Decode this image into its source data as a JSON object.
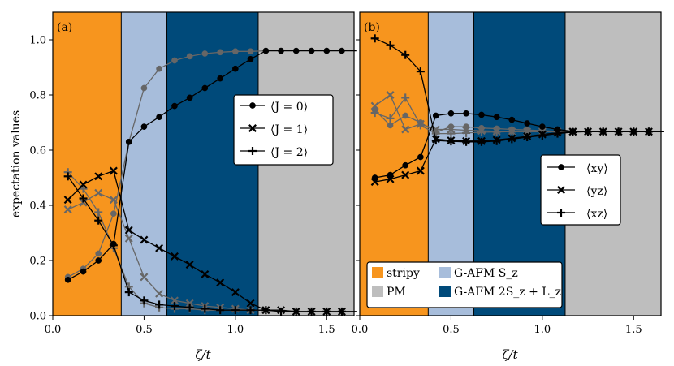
{
  "chart_data": [
    {
      "panel": "(a)",
      "type": "line",
      "xlabel": "ζ/t",
      "ylabel": "expectation values",
      "xlim": [
        0.0,
        1.65
      ],
      "ylim": [
        0.0,
        1.1
      ],
      "xticks": [
        "0.0",
        "0.5",
        "1.0",
        "1.5"
      ],
      "xtick_values": [
        0.0,
        0.5,
        1.0,
        1.5
      ],
      "yticks": [
        "0.0",
        "0.2",
        "0.4",
        "0.6",
        "0.8",
        "1.0"
      ],
      "ytick_values": [
        0.0,
        0.2,
        0.4,
        0.6,
        0.8,
        1.0
      ],
      "regions": [
        {
          "name": "stripy",
          "from": 0.0,
          "to": 0.375,
          "color": "#f7951e"
        },
        {
          "name": "G-AFM Sz",
          "from": 0.375,
          "to": 0.625,
          "color": "#a7bddb"
        },
        {
          "name": "G-AFM 2Sz+Lz",
          "from": 0.625,
          "to": 1.125,
          "color": "#004a7a"
        },
        {
          "name": "PM",
          "from": 1.125,
          "to": 1.65,
          "color": "#bebebe"
        }
      ],
      "legend": [
        "⟨J = 0⟩",
        "⟨J = 1⟩",
        "⟨J = 2⟩"
      ],
      "legend_position": "center-right",
      "series": [
        {
          "name": "⟨J = 0⟩",
          "marker": "circle",
          "color": "#000000",
          "x": [
            0.083,
            0.167,
            0.25,
            0.333,
            0.417,
            0.5,
            0.583,
            0.667,
            0.75,
            0.833,
            0.917,
            1.0,
            1.083,
            1.167,
            1.25,
            1.333,
            1.417,
            1.5,
            1.583,
            1.667
          ],
          "y": [
            0.13,
            0.16,
            0.2,
            0.26,
            0.63,
            0.685,
            0.72,
            0.76,
            0.79,
            0.825,
            0.86,
            0.895,
            0.93,
            0.96,
            0.96,
            0.96,
            0.96,
            0.96,
            0.96,
            0.96
          ]
        },
        {
          "name": "⟨J = 1⟩",
          "marker": "x",
          "color": "#000000",
          "x": [
            0.083,
            0.167,
            0.25,
            0.333,
            0.417,
            0.5,
            0.583,
            0.667,
            0.75,
            0.833,
            0.917,
            1.0,
            1.083,
            1.167,
            1.25,
            1.333,
            1.417,
            1.5,
            1.583,
            1.667
          ],
          "y": [
            0.42,
            0.475,
            0.505,
            0.525,
            0.31,
            0.275,
            0.245,
            0.215,
            0.185,
            0.15,
            0.12,
            0.085,
            0.045,
            0.02,
            0.02,
            0.015,
            0.015,
            0.015,
            0.015,
            0.015
          ]
        },
        {
          "name": "⟨J = 2⟩",
          "marker": "plus",
          "color": "#000000",
          "x": [
            0.083,
            0.167,
            0.25,
            0.333,
            0.417,
            0.5,
            0.583,
            0.667,
            0.75,
            0.833,
            0.917,
            1.0,
            1.083,
            1.167,
            1.25,
            1.333,
            1.417,
            1.5,
            1.583,
            1.667
          ],
          "y": [
            0.505,
            0.425,
            0.345,
            0.255,
            0.085,
            0.055,
            0.04,
            0.035,
            0.03,
            0.025,
            0.02,
            0.02,
            0.02,
            0.02,
            0.015,
            0.015,
            0.015,
            0.015,
            0.015,
            0.015
          ]
        },
        {
          "name": "⟨J = 0⟩ (alt)",
          "marker": "circle",
          "color": "#666666",
          "x": [
            0.083,
            0.167,
            0.25,
            0.333,
            0.417,
            0.5,
            0.583,
            0.667,
            0.75,
            0.833,
            0.917,
            1.0,
            1.083,
            1.167
          ],
          "y": [
            0.14,
            0.17,
            0.225,
            0.37,
            0.63,
            0.825,
            0.895,
            0.925,
            0.94,
            0.95,
            0.955,
            0.958,
            0.958,
            0.96
          ]
        },
        {
          "name": "⟨J = 1⟩ (alt)",
          "marker": "x",
          "color": "#666666",
          "x": [
            0.083,
            0.167,
            0.25,
            0.333,
            0.417,
            0.5,
            0.583,
            0.667,
            0.75,
            0.833,
            0.917,
            1.0,
            1.083,
            1.167
          ],
          "y": [
            0.385,
            0.41,
            0.445,
            0.42,
            0.28,
            0.14,
            0.08,
            0.055,
            0.045,
            0.035,
            0.03,
            0.025,
            0.02,
            0.02
          ]
        },
        {
          "name": "⟨J = 2⟩ (alt)",
          "marker": "plus",
          "color": "#666666",
          "x": [
            0.083,
            0.167,
            0.25,
            0.333,
            0.417,
            0.5,
            0.583,
            0.667,
            0.75,
            0.833,
            0.917,
            1.0,
            1.083,
            1.167
          ],
          "y": [
            0.52,
            0.46,
            0.375,
            0.245,
            0.105,
            0.045,
            0.03,
            0.025,
            0.025,
            0.02,
            0.02,
            0.02,
            0.02,
            0.02
          ]
        }
      ]
    },
    {
      "panel": "(b)",
      "type": "line",
      "xlabel": "ζ/t",
      "ylabel": "",
      "xlim": [
        0.0,
        1.65
      ],
      "ylim": [
        0.0,
        1.1
      ],
      "xticks": [
        "0.0",
        "0.5",
        "1.0",
        "1.5"
      ],
      "xtick_values": [
        0.0,
        0.5,
        1.0,
        1.5
      ],
      "regions": [
        {
          "name": "stripy",
          "from": 0.0,
          "to": 0.375,
          "color": "#f7951e"
        },
        {
          "name": "G-AFM Sz",
          "from": 0.375,
          "to": 0.625,
          "color": "#a7bddb"
        },
        {
          "name": "G-AFM 2Sz+Lz",
          "from": 0.625,
          "to": 1.125,
          "color": "#004a7a"
        },
        {
          "name": "PM",
          "from": 1.125,
          "to": 1.65,
          "color": "#bebebe"
        }
      ],
      "legend": [
        "⟨xy⟩",
        "⟨yz⟩",
        "⟨xz⟩"
      ],
      "legend_position": "center-right",
      "phase_legend": [
        "stripy",
        "G-AFM S_z",
        "PM",
        "G-AFM 2S_z + L_z"
      ],
      "series": [
        {
          "name": "⟨xy⟩",
          "marker": "circle",
          "color": "#000000",
          "x": [
            0.083,
            0.167,
            0.25,
            0.333,
            0.417,
            0.5,
            0.583,
            0.667,
            0.75,
            0.833,
            0.917,
            1.0,
            1.083,
            1.167,
            1.25,
            1.333,
            1.417,
            1.5,
            1.583,
            1.667
          ],
          "y": [
            0.5,
            0.51,
            0.545,
            0.575,
            0.725,
            0.733,
            0.733,
            0.728,
            0.72,
            0.71,
            0.697,
            0.685,
            0.675,
            0.668,
            0.667,
            0.667,
            0.667,
            0.667,
            0.667,
            0.667
          ]
        },
        {
          "name": "⟨yz⟩",
          "marker": "x",
          "color": "#000000",
          "x": [
            0.083,
            0.167,
            0.25,
            0.333,
            0.417,
            0.5,
            0.583,
            0.667,
            0.75,
            0.833,
            0.917,
            1.0,
            1.083,
            1.167,
            1.25,
            1.333,
            1.417,
            1.5,
            1.583,
            1.667
          ],
          "y": [
            0.485,
            0.495,
            0.51,
            0.525,
            0.64,
            0.635,
            0.633,
            0.633,
            0.637,
            0.643,
            0.65,
            0.657,
            0.663,
            0.667,
            0.667,
            0.667,
            0.667,
            0.667,
            0.667,
            0.667
          ]
        },
        {
          "name": "⟨xz⟩",
          "marker": "plus",
          "color": "#000000",
          "x": [
            0.083,
            0.167,
            0.25,
            0.333,
            0.417,
            0.5,
            0.583,
            0.667,
            0.75,
            0.833,
            0.917,
            1.0,
            1.083,
            1.167,
            1.25,
            1.333,
            1.417,
            1.5,
            1.583,
            1.667
          ],
          "y": [
            1.005,
            0.98,
            0.945,
            0.885,
            0.635,
            0.632,
            0.63,
            0.63,
            0.633,
            0.64,
            0.647,
            0.653,
            0.66,
            0.665,
            0.667,
            0.667,
            0.667,
            0.667,
            0.667,
            0.667
          ]
        },
        {
          "name": "⟨xy⟩ (alt)",
          "marker": "circle",
          "color": "#666666",
          "x": [
            0.083,
            0.167,
            0.25,
            0.333,
            0.417,
            0.5,
            0.583,
            0.667,
            0.75,
            0.833,
            0.917,
            1.0,
            1.083,
            1.167
          ],
          "y": [
            0.745,
            0.69,
            0.725,
            0.7,
            0.665,
            0.685,
            0.685,
            0.68,
            0.678,
            0.675,
            0.673,
            0.67,
            0.668,
            0.667
          ]
        },
        {
          "name": "⟨yz⟩ (alt)",
          "marker": "x",
          "color": "#666666",
          "x": [
            0.083,
            0.167,
            0.25,
            0.333,
            0.417,
            0.5,
            0.583,
            0.667,
            0.75,
            0.833,
            0.917,
            1.0,
            1.083,
            1.167
          ],
          "y": [
            0.76,
            0.8,
            0.675,
            0.695,
            0.675,
            0.675,
            0.672,
            0.67,
            0.668,
            0.667,
            0.667,
            0.667,
            0.667,
            0.667
          ]
        },
        {
          "name": "⟨xz⟩ (alt)",
          "marker": "plus",
          "color": "#666666",
          "x": [
            0.083,
            0.167,
            0.25,
            0.333,
            0.417,
            0.5,
            0.583,
            0.667,
            0.75,
            0.833,
            0.917,
            1.0,
            1.083,
            1.167
          ],
          "y": [
            0.735,
            0.715,
            0.79,
            0.69,
            0.66,
            0.66,
            0.662,
            0.665,
            0.666,
            0.667,
            0.667,
            0.667,
            0.667,
            0.667
          ]
        }
      ]
    }
  ]
}
